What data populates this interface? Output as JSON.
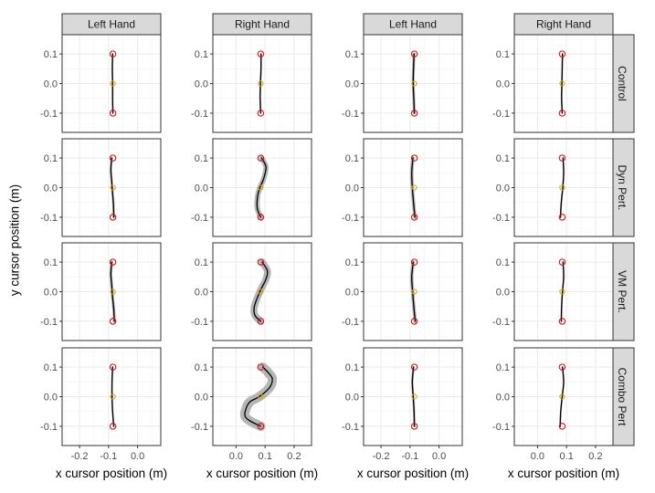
{
  "chart_data": {
    "type": "line",
    "xlabel": "x cursor position (m)",
    "ylabel": "y cursor position (m)",
    "column_strips": [
      "Left Hand",
      "Right Hand",
      "Left Hand",
      "Right Hand"
    ],
    "row_strips": [
      "Control",
      "Dyn Pert.",
      "VM Pert.",
      "Combo Pert"
    ],
    "x_scales": [
      {
        "lim": [
          -0.26,
          0.08
        ],
        "ticks": [
          -0.2,
          -0.1,
          0.0
        ],
        "tick_labels": [
          "-0.2",
          "-0.1",
          "0.0"
        ]
      },
      {
        "lim": [
          -0.08,
          0.26
        ],
        "ticks": [
          0.0,
          0.1,
          0.2
        ],
        "tick_labels": [
          "0.0",
          "0.1",
          "0.2"
        ]
      },
      {
        "lim": [
          -0.26,
          0.08
        ],
        "ticks": [
          -0.2,
          -0.1,
          0.0
        ],
        "tick_labels": [
          "-0.2",
          "-0.1",
          "0.0"
        ]
      },
      {
        "lim": [
          -0.08,
          0.26
        ],
        "ticks": [
          0.0,
          0.1,
          0.2
        ],
        "tick_labels": [
          "0.0",
          "0.1",
          "0.2"
        ]
      }
    ],
    "y_scale": {
      "lim": [
        -0.165,
        0.165
      ],
      "ticks": [
        -0.1,
        0.0,
        0.1
      ],
      "tick_labels": [
        "-0.1",
        "0.0",
        "0.1"
      ]
    },
    "grid": true,
    "markers": {
      "start": {
        "y": -0.1,
        "color": "#d4141a"
      },
      "mid": {
        "y": 0.0,
        "color": "#e0a500"
      },
      "end": {
        "y": 0.1,
        "color": "#d4141a"
      }
    },
    "colors": {
      "path": "#000000",
      "band": "#9e9e9e"
    },
    "panels": [
      {
        "row": 0,
        "col": 0,
        "target_x": -0.085,
        "band": 0.003,
        "path": [
          [
            -0.1,
            -0.085
          ],
          [
            -0.05,
            -0.086
          ],
          [
            0.0,
            -0.086
          ],
          [
            0.05,
            -0.087
          ],
          [
            0.1,
            -0.086
          ]
        ]
      },
      {
        "row": 0,
        "col": 1,
        "target_x": 0.085,
        "band": 0.003,
        "path": [
          [
            -0.1,
            0.085
          ],
          [
            -0.05,
            0.083
          ],
          [
            0.0,
            0.084
          ],
          [
            0.05,
            0.086
          ],
          [
            0.1,
            0.086
          ]
        ]
      },
      {
        "row": 0,
        "col": 2,
        "target_x": -0.085,
        "band": 0.005,
        "path": [
          [
            -0.1,
            -0.085
          ],
          [
            -0.05,
            -0.087
          ],
          [
            0.0,
            -0.089
          ],
          [
            0.05,
            -0.088
          ],
          [
            0.1,
            -0.086
          ]
        ]
      },
      {
        "row": 0,
        "col": 3,
        "target_x": 0.085,
        "band": 0.003,
        "path": [
          [
            -0.1,
            0.085
          ],
          [
            -0.05,
            0.083
          ],
          [
            0.0,
            0.084
          ],
          [
            0.05,
            0.085
          ],
          [
            0.1,
            0.086
          ]
        ]
      },
      {
        "row": 1,
        "col": 0,
        "target_x": -0.085,
        "band": 0.004,
        "path": [
          [
            -0.1,
            -0.082
          ],
          [
            -0.06,
            -0.083
          ],
          [
            -0.02,
            -0.086
          ],
          [
            0.02,
            -0.089
          ],
          [
            0.06,
            -0.092
          ],
          [
            0.1,
            -0.089
          ]
        ]
      },
      {
        "row": 1,
        "col": 1,
        "target_x": 0.085,
        "band": 0.009,
        "path": [
          [
            -0.1,
            0.085
          ],
          [
            -0.07,
            0.073
          ],
          [
            -0.03,
            0.074
          ],
          [
            0.0,
            0.082
          ],
          [
            0.03,
            0.095
          ],
          [
            0.07,
            0.103
          ],
          [
            0.1,
            0.088
          ]
        ]
      },
      {
        "row": 1,
        "col": 2,
        "target_x": -0.085,
        "band": 0.006,
        "path": [
          [
            -0.1,
            -0.083
          ],
          [
            -0.05,
            -0.088
          ],
          [
            0.0,
            -0.092
          ],
          [
            0.05,
            -0.094
          ],
          [
            0.1,
            -0.09
          ]
        ]
      },
      {
        "row": 1,
        "col": 3,
        "target_x": 0.085,
        "band": 0.003,
        "path": [
          [
            -0.1,
            0.079
          ],
          [
            -0.05,
            0.082
          ],
          [
            0.0,
            0.087
          ],
          [
            0.05,
            0.09
          ],
          [
            0.1,
            0.088
          ]
        ]
      },
      {
        "row": 2,
        "col": 0,
        "target_x": -0.085,
        "band": 0.005,
        "path": [
          [
            -0.1,
            -0.08
          ],
          [
            -0.06,
            -0.082
          ],
          [
            -0.02,
            -0.086
          ],
          [
            0.02,
            -0.089
          ],
          [
            0.06,
            -0.092
          ],
          [
            0.1,
            -0.089
          ]
        ]
      },
      {
        "row": 2,
        "col": 1,
        "target_x": 0.085,
        "band": 0.012,
        "path": [
          [
            -0.1,
            0.085
          ],
          [
            -0.08,
            0.065
          ],
          [
            -0.05,
            0.063
          ],
          [
            0.0,
            0.082
          ],
          [
            0.04,
            0.102
          ],
          [
            0.07,
            0.108
          ],
          [
            0.1,
            0.09
          ]
        ]
      },
      {
        "row": 2,
        "col": 2,
        "target_x": -0.085,
        "band": 0.006,
        "path": [
          [
            -0.1,
            -0.082
          ],
          [
            -0.05,
            -0.087
          ],
          [
            0.0,
            -0.091
          ],
          [
            0.05,
            -0.094
          ],
          [
            0.1,
            -0.089
          ]
        ]
      },
      {
        "row": 2,
        "col": 3,
        "target_x": 0.085,
        "band": 0.003,
        "path": [
          [
            -0.1,
            0.082
          ],
          [
            -0.05,
            0.083
          ],
          [
            0.0,
            0.086
          ],
          [
            0.05,
            0.09
          ],
          [
            0.1,
            0.088
          ]
        ]
      },
      {
        "row": 3,
        "col": 0,
        "target_x": -0.085,
        "band": 0.003,
        "path": [
          [
            -0.1,
            -0.082
          ],
          [
            -0.05,
            -0.086
          ],
          [
            0.0,
            -0.088
          ],
          [
            0.05,
            -0.088
          ],
          [
            0.1,
            -0.086
          ]
        ]
      },
      {
        "row": 3,
        "col": 1,
        "target_x": 0.085,
        "band": 0.016,
        "path": [
          [
            -0.1,
            0.085
          ],
          [
            -0.08,
            0.045
          ],
          [
            -0.06,
            0.03
          ],
          [
            -0.02,
            0.045
          ],
          [
            0.0,
            0.08
          ],
          [
            0.03,
            0.115
          ],
          [
            0.06,
            0.125
          ],
          [
            0.08,
            0.112
          ],
          [
            0.1,
            0.092
          ]
        ]
      },
      {
        "row": 3,
        "col": 2,
        "target_x": -0.085,
        "band": 0.004,
        "path": [
          [
            -0.1,
            -0.085
          ],
          [
            -0.05,
            -0.086
          ],
          [
            0.0,
            -0.089
          ],
          [
            0.05,
            -0.092
          ],
          [
            0.1,
            -0.088
          ]
        ]
      },
      {
        "row": 3,
        "col": 3,
        "target_x": 0.085,
        "band": 0.003,
        "path": [
          [
            -0.1,
            0.078
          ],
          [
            -0.05,
            0.08
          ],
          [
            0.0,
            0.085
          ],
          [
            0.05,
            0.09
          ],
          [
            0.1,
            0.086
          ]
        ]
      }
    ]
  }
}
